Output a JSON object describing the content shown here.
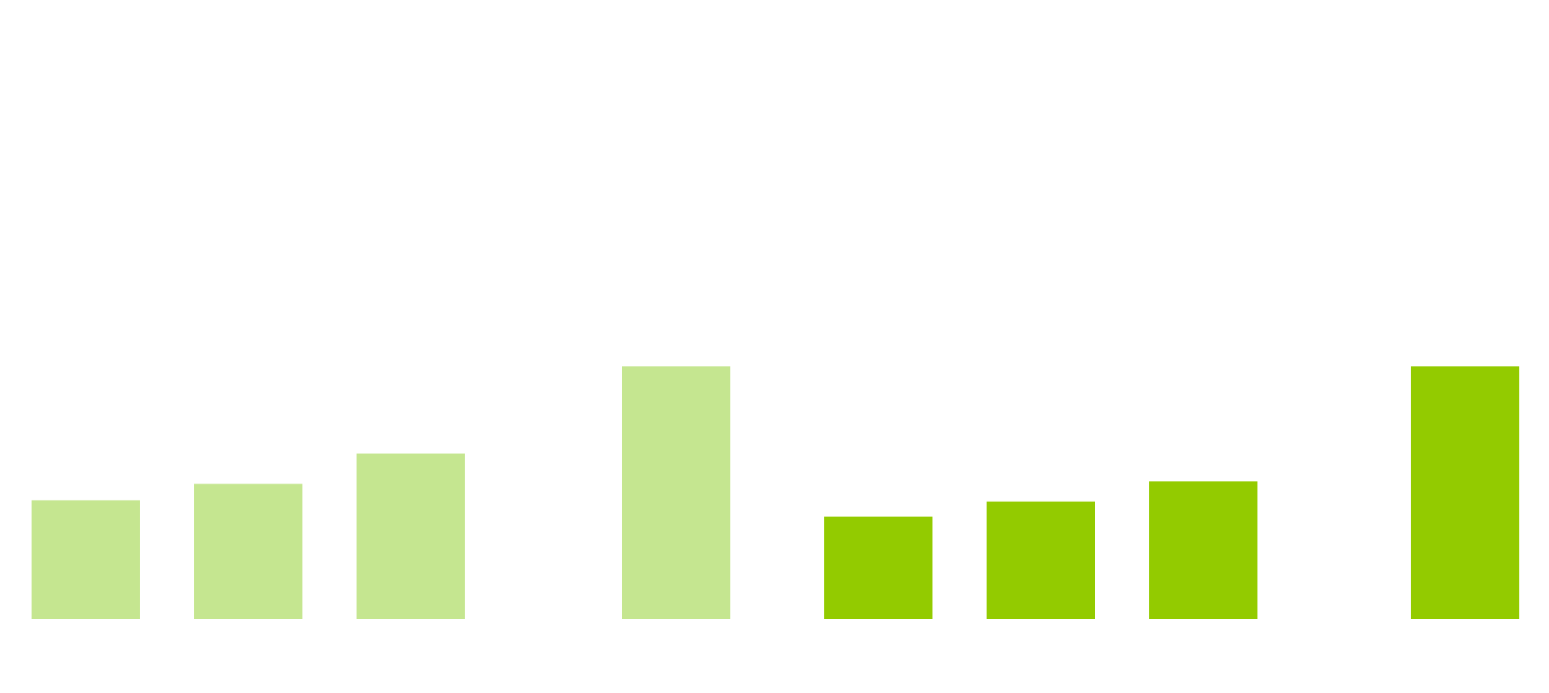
{
  "chart_data": {
    "type": "bar",
    "title": "",
    "xlabel": "",
    "ylabel": "",
    "ylim": [
      0,
      100
    ],
    "grid": false,
    "legend": "none",
    "groups": [
      {
        "color": "#c5e690",
        "values": [
          47,
          53.5,
          65.5,
          100
        ]
      },
      {
        "color": "#93cb00",
        "values": [
          40.5,
          46.5,
          54.5,
          100
        ]
      }
    ]
  }
}
